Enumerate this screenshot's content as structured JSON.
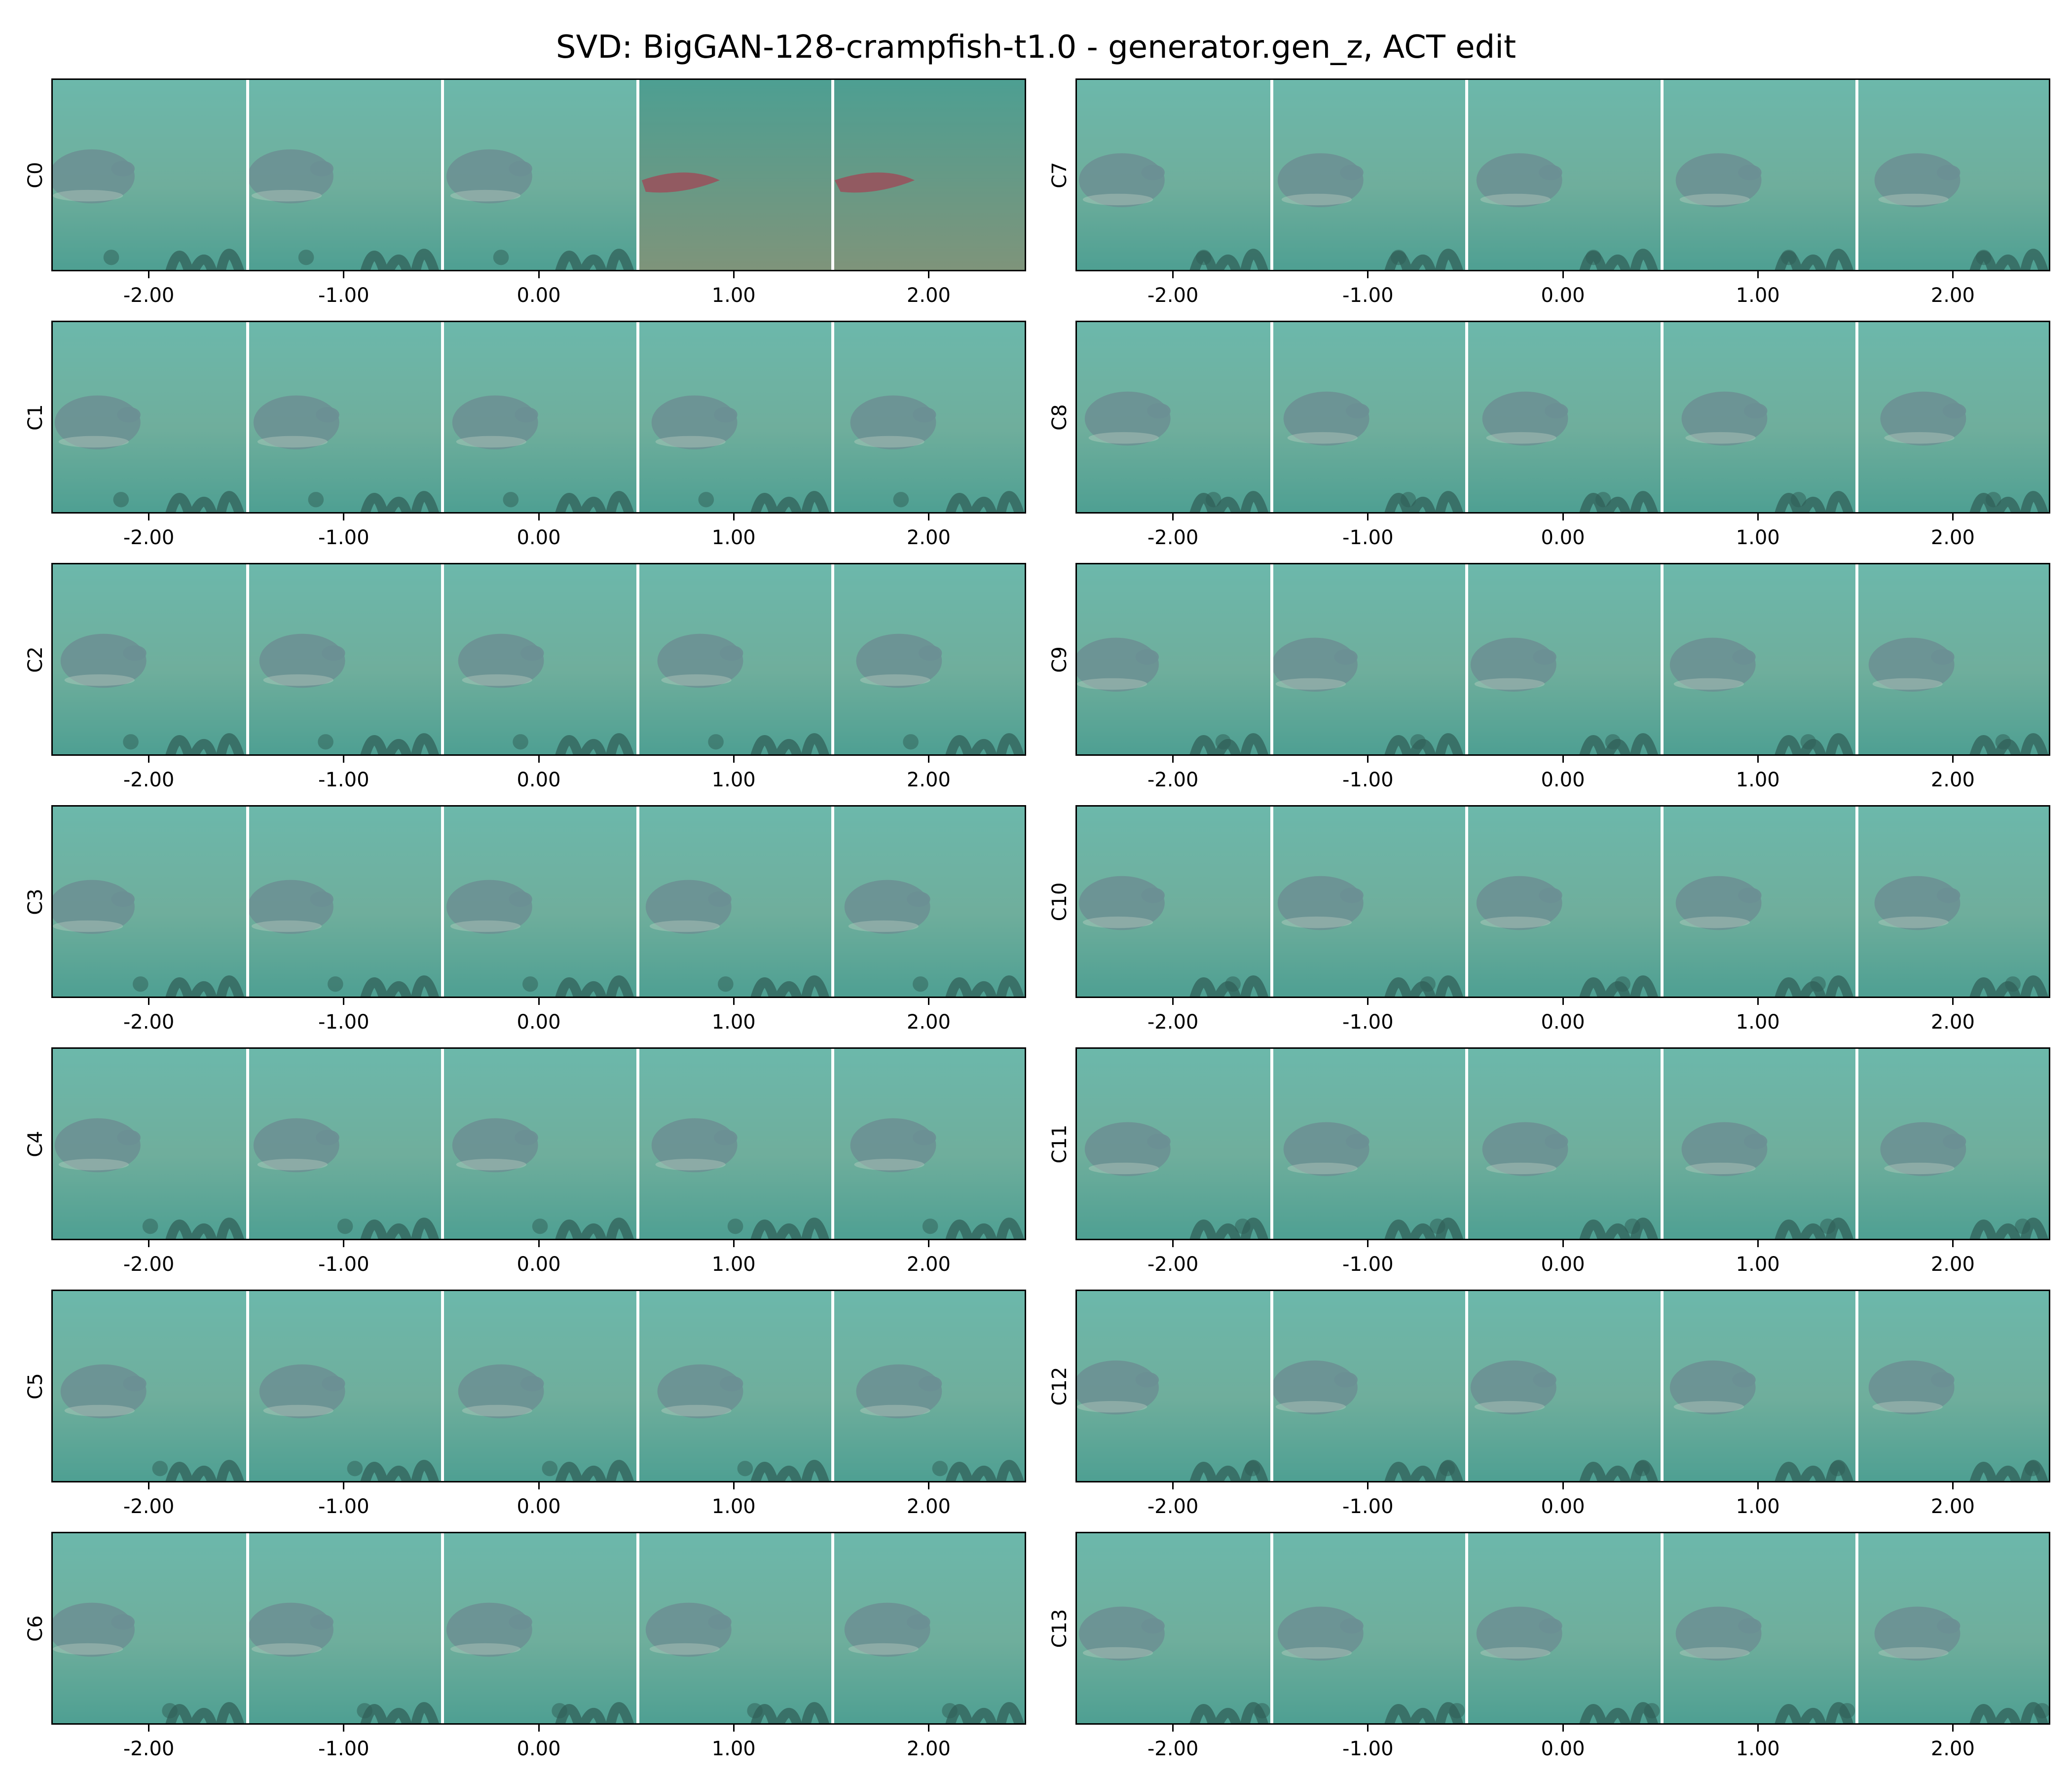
{
  "title": "SVD: BigGAN-128-crampfish-t1.0 - generator.gen_z, ACT edit",
  "x_tick_labels": [
    "-2.00",
    "-1.00",
    "0.00",
    "1.00",
    "2.00"
  ],
  "columns": [
    {
      "rows": [
        "C0",
        "C1",
        "C2",
        "C3",
        "C4",
        "C5",
        "C6"
      ]
    },
    {
      "rows": [
        "C7",
        "C8",
        "C9",
        "C10",
        "C11",
        "C12",
        "C13"
      ]
    }
  ],
  "image_description": "Each row is a strip of five generated underwater images of a crampfish (ray) resting on a sandy, teal-green sea floor; the edit strength varies from -2.00 to 2.00 across the strip.",
  "colors": {
    "water": "#4d9f92",
    "water_light": "#6cb8ab",
    "sand": "#6fae9c",
    "ray": "#6c8f93",
    "seaweed": "#2f5d55",
    "shifted_background": "#7f947a",
    "shifted_fish": "#9a4f5a",
    "divider": "#ffffff",
    "axes": "#000000"
  }
}
